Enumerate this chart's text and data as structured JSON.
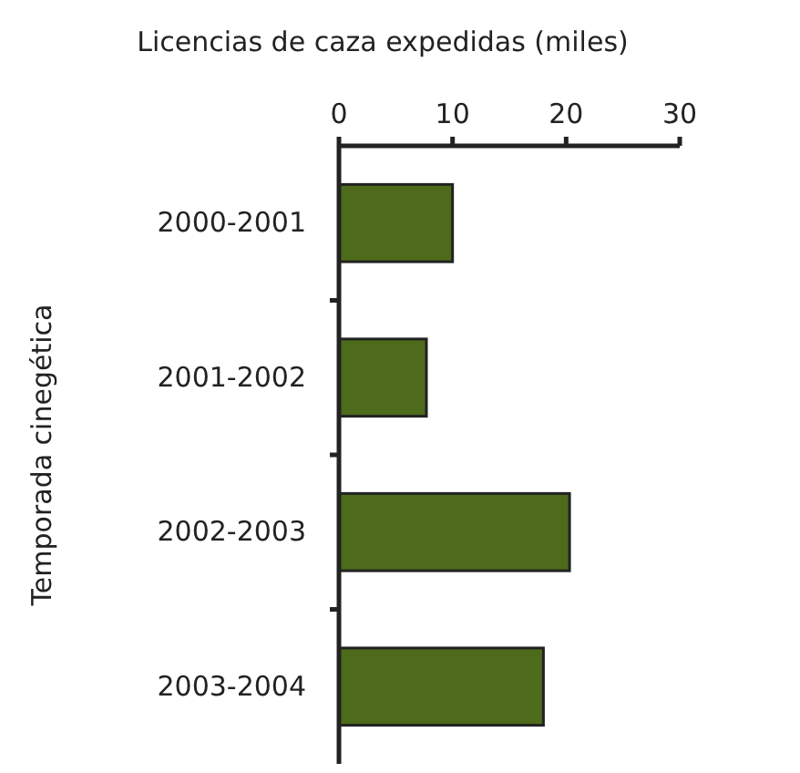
{
  "chart_data": {
    "type": "bar",
    "orientation": "horizontal",
    "xlabel": "Licencias de caza expedidas (miles)",
    "ylabel": "Temporada cinegética",
    "categories": [
      "2000-2001",
      "2001-2002",
      "2002-2003",
      "2003-2004"
    ],
    "values": [
      10,
      7.7,
      20.3,
      18
    ],
    "color": "#4d6b1a",
    "xlim": [
      0,
      30
    ],
    "xticks": [
      0,
      10,
      20,
      30
    ],
    "grid": false
  }
}
